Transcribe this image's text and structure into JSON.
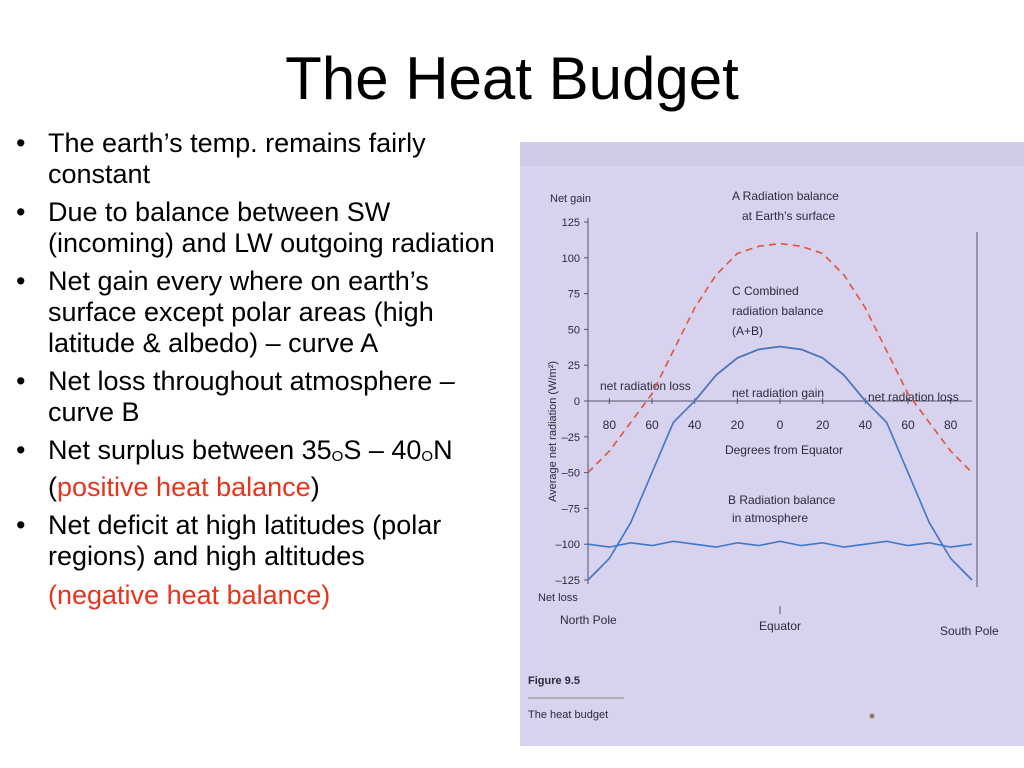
{
  "slide": {
    "title": "The Heat Budget",
    "bullets": [
      {
        "parts": [
          "The earth’s temp. remains fairly constant"
        ]
      },
      {
        "parts": [
          "Due to balance between SW (incoming) and LW outgoing radiation"
        ]
      },
      {
        "parts": [
          "Net gain every where on earth’s surface except polar areas (high latitude & albedo) – curve A"
        ]
      },
      {
        "parts": [
          "Net loss throughout atmosphere – curve B"
        ]
      },
      {
        "parts": [
          "Net surplus between 35",
          "O",
          "S – 40",
          "O",
          "N (",
          "positive heat balance",
          ")"
        ]
      },
      {
        "parts": [
          "Net deficit at high latitudes (polar regions) and high altitudes"
        ]
      }
    ],
    "continuation": "(negative heat balance)",
    "bullet_char": "•",
    "accent_color": "#e8341c"
  },
  "figure": {
    "caption_number": "Figure 9.5",
    "caption_text": "The heat budget",
    "label_net_gain": "Net gain",
    "label_net_loss": "Net loss",
    "ylabel": "Average net radiation (W/m²)",
    "xlabel": "Degrees from Equator",
    "y_ticks": [
      "125",
      "100",
      "75",
      "50",
      "25",
      "0",
      "–25",
      "–50",
      "–75",
      "–100",
      "–125"
    ],
    "x_ticks": [
      "80",
      "60",
      "40",
      "20",
      "0",
      "20",
      "40",
      "60",
      "80"
    ],
    "north_pole": "North Pole",
    "equator": "Equator",
    "south_pole": "South Pole",
    "curve_a_label": [
      "A Radiation balance",
      "at Earth’s surface"
    ],
    "curve_b_label": [
      "B Radiation balance",
      "in atmosphere"
    ],
    "curve_c_label": [
      "C Combined",
      "radiation balance",
      "(A+B)"
    ],
    "zone_left": "net radiation loss",
    "zone_center": "net radiation gain",
    "zone_right": "net radiation loss",
    "colors": {
      "curve_a": "#e0553a",
      "curve_b": "#3f78c8",
      "curve_c": "#d94a32",
      "axis": "#555566",
      "page": "#d7d2ee"
    }
  },
  "chart_data": {
    "type": "line",
    "title": "",
    "xlabel": "Degrees from Equator",
    "ylabel": "Average net radiation (W/m²)",
    "x_ticks": [
      "80",
      "60",
      "40",
      "20",
      "0",
      "20",
      "40",
      "60",
      "80"
    ],
    "x": [
      -90,
      -80,
      -70,
      -60,
      -50,
      -40,
      -30,
      -20,
      -10,
      0,
      10,
      20,
      30,
      40,
      50,
      60,
      70,
      80,
      90
    ],
    "ylim": [
      -125,
      125
    ],
    "grid": false,
    "series": [
      {
        "name": "A Radiation balance at Earth’s surface",
        "style": "dashed",
        "color": "#e0553a",
        "values": [
          -50,
          -35,
          -15,
          5,
          35,
          65,
          88,
          103,
          108,
          110,
          108,
          103,
          88,
          65,
          35,
          5,
          -15,
          -35,
          -50
        ]
      },
      {
        "name": "B Radiation balance in atmosphere",
        "style": "solid",
        "color": "#3f78c8",
        "values": [
          -100,
          -102,
          -99,
          -101,
          -98,
          -100,
          -102,
          -99,
          -101,
          -98,
          -101,
          -99,
          -102,
          -100,
          -98,
          -101,
          -99,
          -102,
          -100
        ]
      },
      {
        "name": "C Combined radiation balance (A+B)",
        "style": "solid",
        "color": "#d94a32",
        "x": [
          -40,
          -30,
          -20,
          -10,
          0,
          10,
          20,
          30,
          40
        ],
        "values": [
          0,
          18,
          30,
          36,
          38,
          36,
          30,
          18,
          0
        ]
      },
      {
        "name": "",
        "style": "solid",
        "color": "#3f78c8",
        "x": [
          -90,
          -80,
          -70,
          -60,
          -50,
          -40,
          -30,
          -20,
          -10,
          0,
          10,
          20,
          30,
          40,
          50,
          60,
          70,
          80,
          90
        ],
        "values": [
          -125,
          -110,
          -85,
          -50,
          -15,
          0,
          18,
          30,
          36,
          38,
          36,
          30,
          18,
          0,
          -15,
          -50,
          -85,
          -110,
          -125
        ]
      }
    ]
  }
}
